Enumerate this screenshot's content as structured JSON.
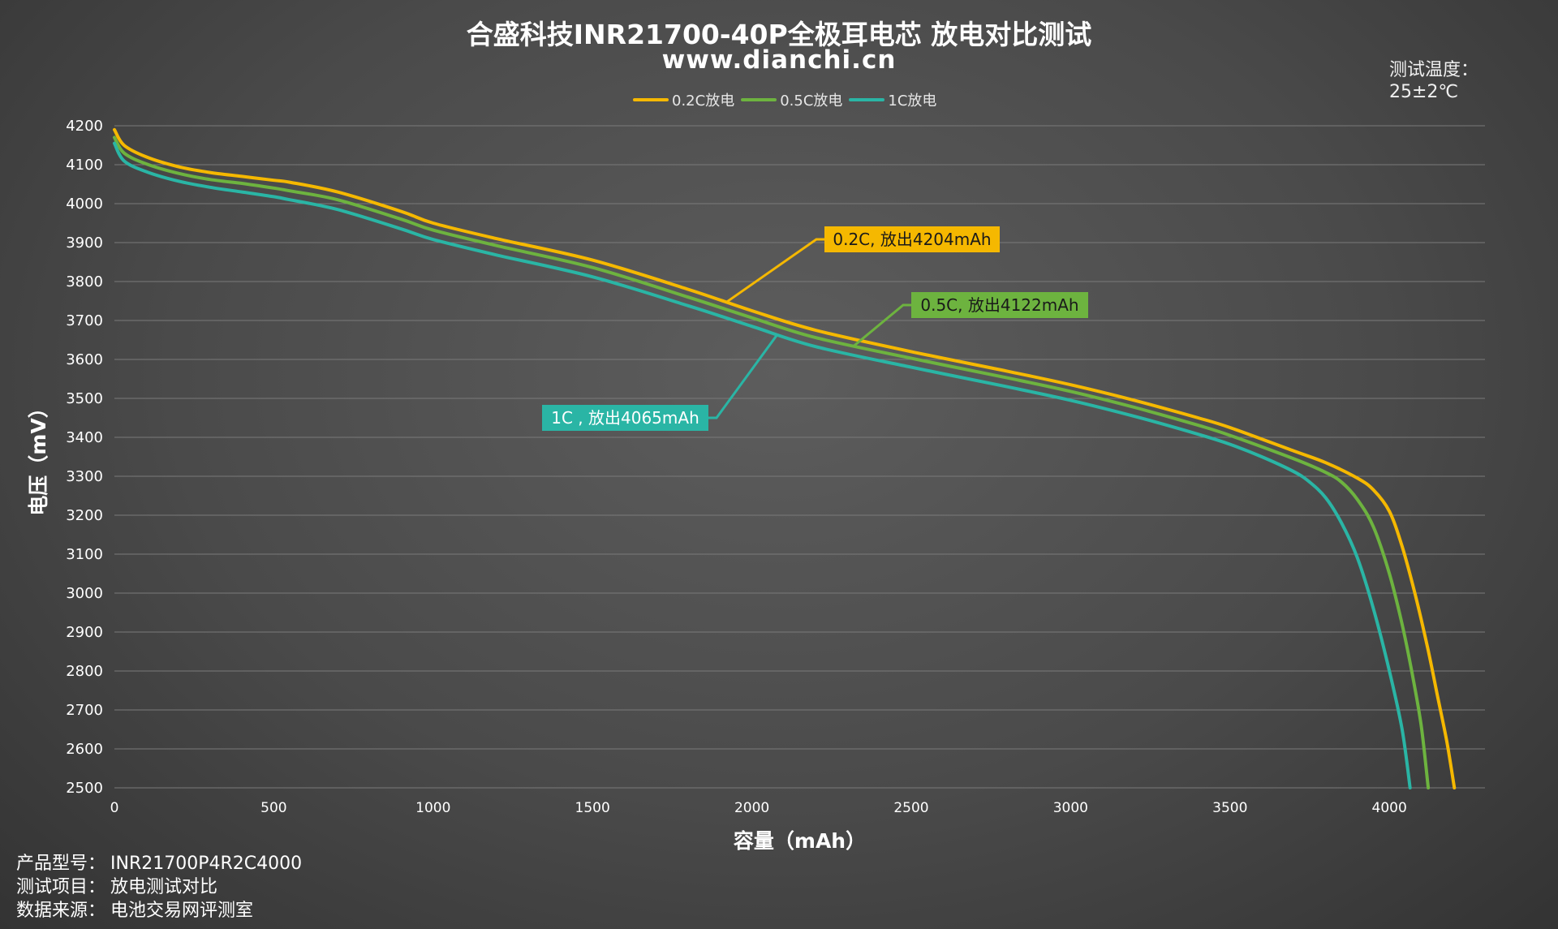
{
  "header": {
    "title": "合盛科技INR21700-40P全极耳电芯 放电对比测试",
    "subtitle": "www.dianchi.cn"
  },
  "temperature": {
    "label": "测试温度：",
    "value": "25±2℃"
  },
  "footer": {
    "model_label": "产品型号：",
    "model_value": "INR21700P4R2C4000",
    "item_label": "测试项目：",
    "item_value": "放电测试对比",
    "source_label": "数据来源：",
    "source_value": "电池交易网评测室"
  },
  "chart_data": {
    "type": "line",
    "xlabel": "容量（mAh）",
    "ylabel": "电压（mV）",
    "xlim": [
      0,
      4300
    ],
    "ylim": [
      2500,
      4200
    ],
    "x_ticks": [
      0,
      500,
      1000,
      1500,
      2000,
      2500,
      3000,
      3500,
      4000
    ],
    "y_ticks": [
      2500,
      2600,
      2700,
      2800,
      2900,
      3000,
      3100,
      3200,
      3300,
      3400,
      3500,
      3600,
      3700,
      3800,
      3900,
      4000,
      4100,
      4200
    ],
    "grid": "horizontal",
    "legend_position": "top-center",
    "series": [
      {
        "name": "0.2C放电",
        "color": "#f5b800",
        "capacity_label": "0.2C, 放出4204mAh",
        "points": [
          [
            0,
            4190
          ],
          [
            30,
            4150
          ],
          [
            100,
            4120
          ],
          [
            200,
            4095
          ],
          [
            300,
            4080
          ],
          [
            400,
            4070
          ],
          [
            500,
            4060
          ],
          [
            550,
            4055
          ],
          [
            700,
            4030
          ],
          [
            900,
            3980
          ],
          [
            1000,
            3950
          ],
          [
            1200,
            3910
          ],
          [
            1500,
            3855
          ],
          [
            1800,
            3780
          ],
          [
            2000,
            3725
          ],
          [
            2200,
            3675
          ],
          [
            2500,
            3620
          ],
          [
            2800,
            3570
          ],
          [
            3000,
            3535
          ],
          [
            3200,
            3495
          ],
          [
            3400,
            3450
          ],
          [
            3500,
            3425
          ],
          [
            3700,
            3365
          ],
          [
            3800,
            3335
          ],
          [
            3900,
            3295
          ],
          [
            3950,
            3265
          ],
          [
            4000,
            3210
          ],
          [
            4040,
            3120
          ],
          [
            4080,
            3000
          ],
          [
            4120,
            2860
          ],
          [
            4150,
            2740
          ],
          [
            4180,
            2620
          ],
          [
            4204,
            2500
          ]
        ]
      },
      {
        "name": "0.5C放电",
        "color": "#6db33f",
        "capacity_label": "0.5C, 放出4122mAh",
        "points": [
          [
            0,
            4170
          ],
          [
            30,
            4130
          ],
          [
            100,
            4102
          ],
          [
            200,
            4078
          ],
          [
            300,
            4062
          ],
          [
            400,
            4052
          ],
          [
            500,
            4040
          ],
          [
            550,
            4033
          ],
          [
            700,
            4010
          ],
          [
            900,
            3960
          ],
          [
            1000,
            3932
          ],
          [
            1200,
            3892
          ],
          [
            1500,
            3836
          ],
          [
            1800,
            3760
          ],
          [
            2000,
            3707
          ],
          [
            2200,
            3656
          ],
          [
            2500,
            3603
          ],
          [
            2800,
            3553
          ],
          [
            3000,
            3518
          ],
          [
            3200,
            3477
          ],
          [
            3400,
            3431
          ],
          [
            3500,
            3405
          ],
          [
            3700,
            3345
          ],
          [
            3800,
            3310
          ],
          [
            3850,
            3285
          ],
          [
            3900,
            3240
          ],
          [
            3950,
            3170
          ],
          [
            4000,
            3050
          ],
          [
            4040,
            2920
          ],
          [
            4070,
            2800
          ],
          [
            4100,
            2660
          ],
          [
            4122,
            2500
          ]
        ]
      },
      {
        "name": "1C放电",
        "color": "#2ab5a5",
        "capacity_label": "1C , 放出4065mAh",
        "points": [
          [
            0,
            4155
          ],
          [
            30,
            4110
          ],
          [
            100,
            4082
          ],
          [
            200,
            4058
          ],
          [
            300,
            4042
          ],
          [
            400,
            4030
          ],
          [
            500,
            4018
          ],
          [
            550,
            4010
          ],
          [
            700,
            3985
          ],
          [
            900,
            3935
          ],
          [
            1000,
            3908
          ],
          [
            1200,
            3868
          ],
          [
            1500,
            3812
          ],
          [
            1800,
            3738
          ],
          [
            2000,
            3685
          ],
          [
            2200,
            3633
          ],
          [
            2500,
            3580
          ],
          [
            2800,
            3530
          ],
          [
            3000,
            3495
          ],
          [
            3200,
            3454
          ],
          [
            3400,
            3408
          ],
          [
            3500,
            3382
          ],
          [
            3600,
            3350
          ],
          [
            3700,
            3312
          ],
          [
            3750,
            3285
          ],
          [
            3800,
            3245
          ],
          [
            3850,
            3180
          ],
          [
            3900,
            3090
          ],
          [
            3950,
            2960
          ],
          [
            4000,
            2800
          ],
          [
            4040,
            2650
          ],
          [
            4065,
            2500
          ]
        ]
      }
    ]
  }
}
